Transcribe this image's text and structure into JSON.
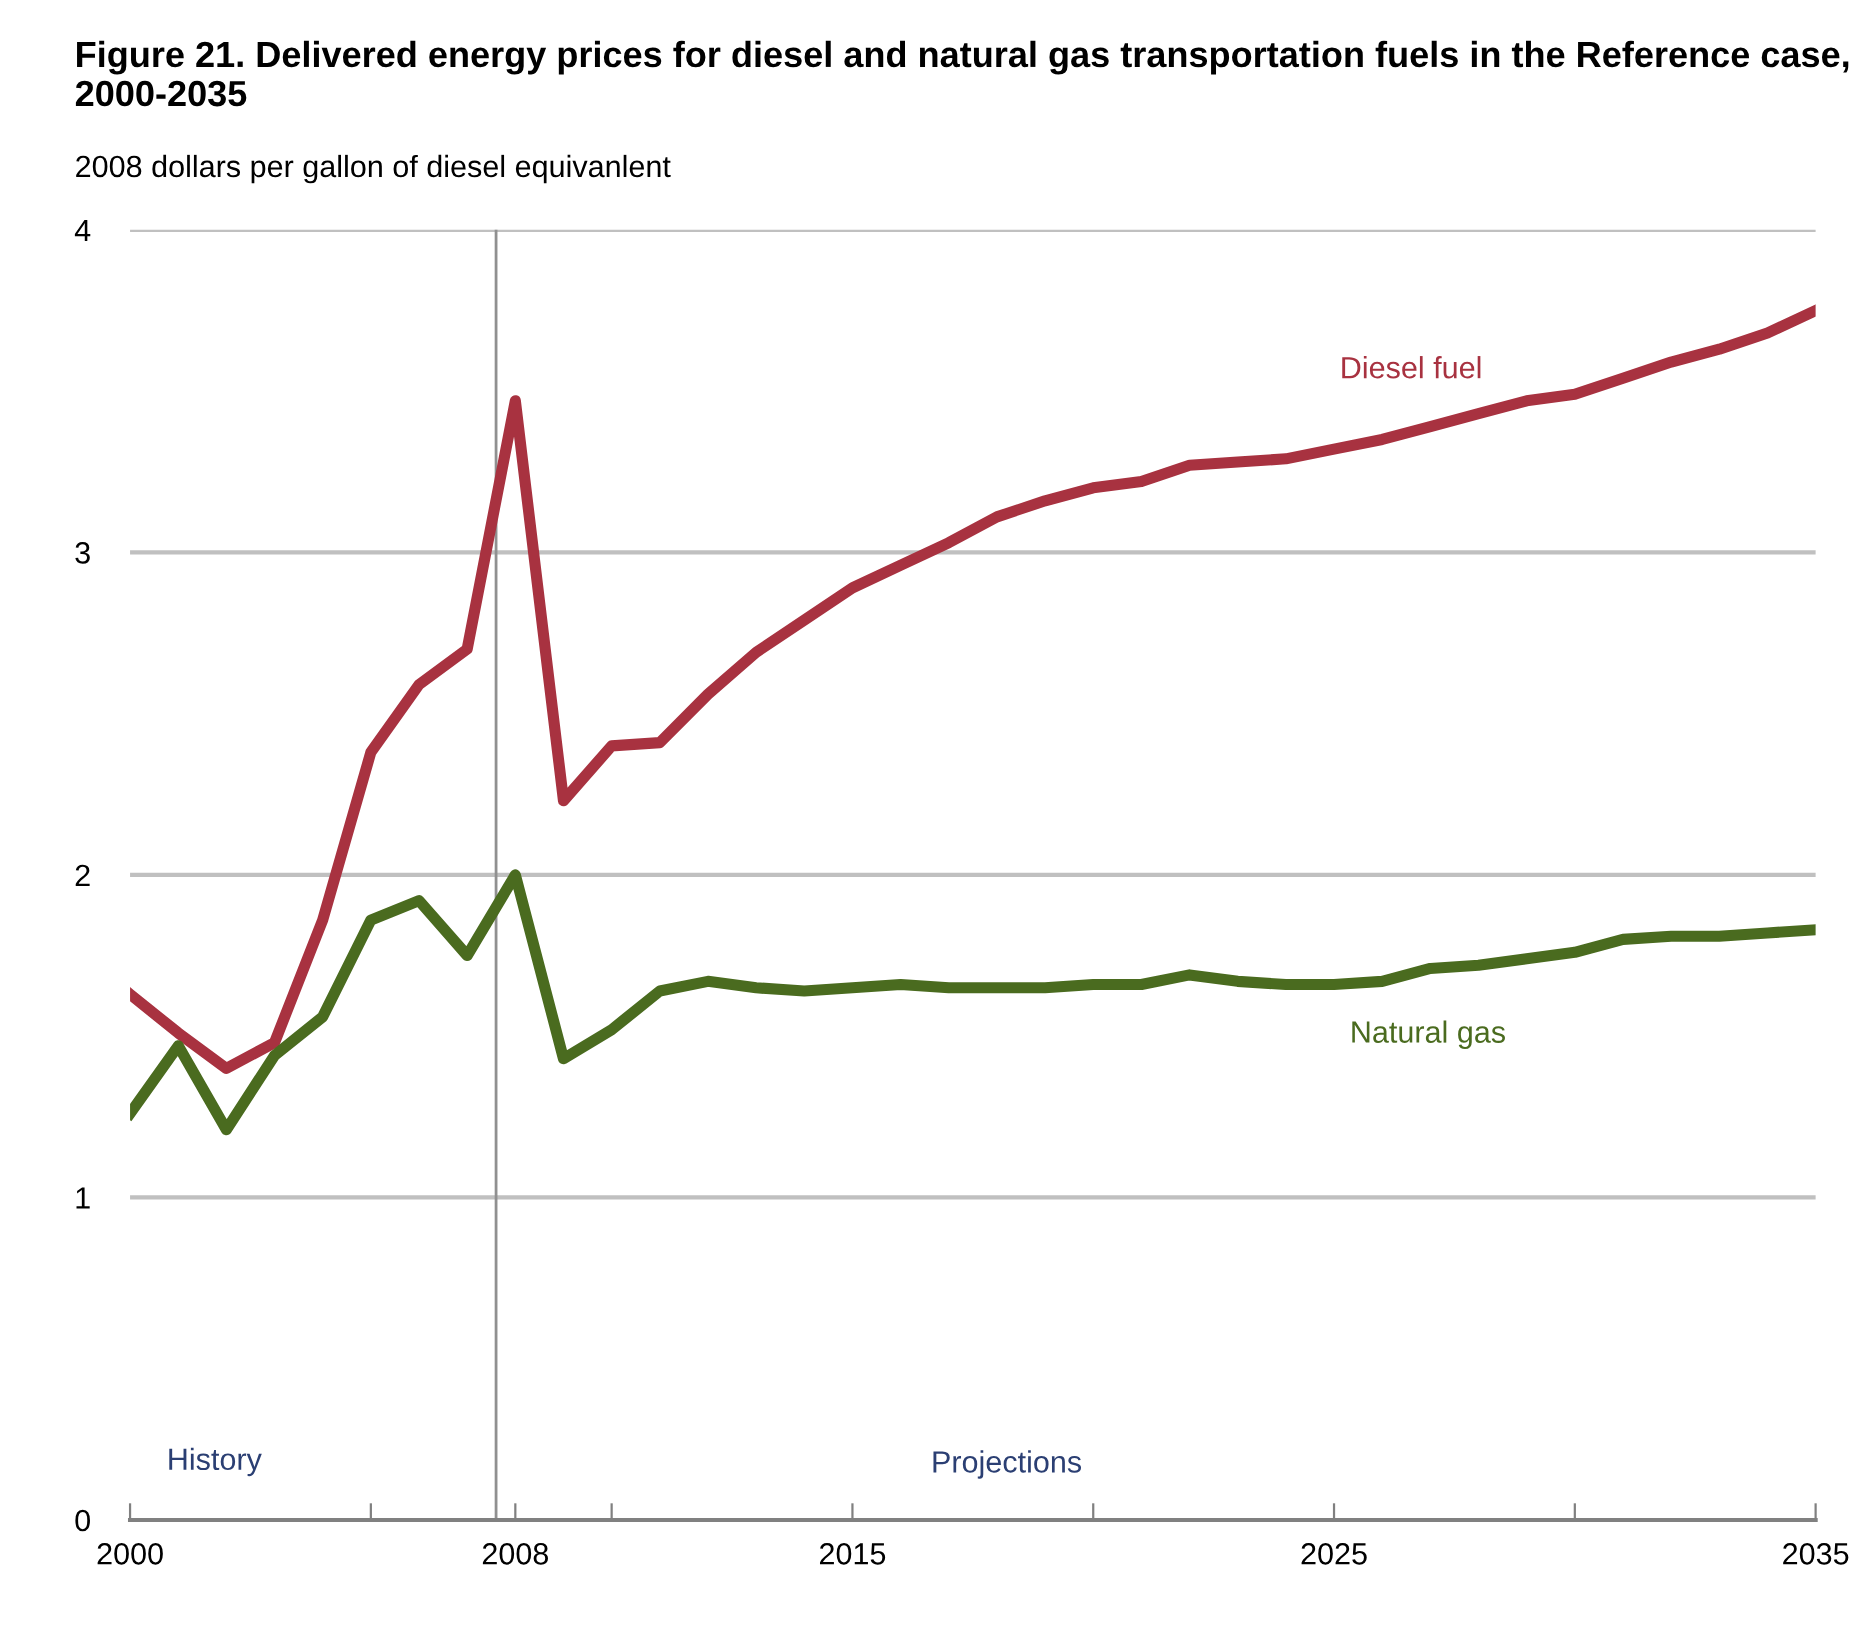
{
  "chart_data": {
    "type": "line",
    "title": "Figure 21. Delivered energy prices for diesel and natural gas transportation fuels in the Reference case, 2000-2035",
    "subtitle": "2008 dollars per gallon of diesel equivanlent",
    "x": [
      2000,
      2001,
      2002,
      2003,
      2004,
      2005,
      2006,
      2007,
      2008,
      2009,
      2010,
      2011,
      2012,
      2013,
      2014,
      2015,
      2016,
      2017,
      2018,
      2019,
      2020,
      2021,
      2022,
      2023,
      2024,
      2025,
      2026,
      2027,
      2028,
      2029,
      2030,
      2031,
      2032,
      2033,
      2034,
      2035
    ],
    "series": [
      {
        "name": "Diesel fuel",
        "color": "#a83240",
        "values": [
          1.63,
          1.51,
          1.4,
          1.48,
          1.86,
          2.38,
          2.59,
          2.7,
          3.47,
          2.23,
          2.4,
          2.41,
          2.56,
          2.69,
          2.79,
          2.89,
          2.96,
          3.03,
          3.11,
          3.16,
          3.2,
          3.22,
          3.27,
          3.28,
          3.29,
          3.32,
          3.35,
          3.39,
          3.43,
          3.47,
          3.49,
          3.54,
          3.59,
          3.63,
          3.68,
          3.75
        ]
      },
      {
        "name": "Natural gas",
        "color": "#4a6b1f",
        "values": [
          1.26,
          1.47,
          1.21,
          1.44,
          1.56,
          1.86,
          1.92,
          1.75,
          2.0,
          1.43,
          1.52,
          1.64,
          1.67,
          1.65,
          1.64,
          1.65,
          1.66,
          1.65,
          1.65,
          1.65,
          1.66,
          1.66,
          1.69,
          1.67,
          1.66,
          1.66,
          1.67,
          1.71,
          1.72,
          1.74,
          1.76,
          1.8,
          1.81,
          1.81,
          1.82,
          1.83
        ]
      }
    ],
    "xlim": [
      2000,
      2035
    ],
    "xticks": [
      2000,
      {
        "value": 2005,
        "label": null
      },
      2008,
      {
        "value": 2010,
        "label": null
      },
      2015,
      {
        "value": 2020,
        "label": null
      },
      2025,
      {
        "value": 2030,
        "label": null
      },
      2035
    ],
    "ylim": [
      0,
      4
    ],
    "yticks": [
      0,
      1,
      2,
      3,
      4
    ],
    "ref_lines": [
      {
        "axis": "x",
        "value": 2007.6,
        "label": null,
        "color": "#909090"
      }
    ],
    "annotations": [
      "History",
      "Projections"
    ],
    "grid": "y",
    "legend": false,
    "line_style": "solid",
    "marker": "none"
  }
}
